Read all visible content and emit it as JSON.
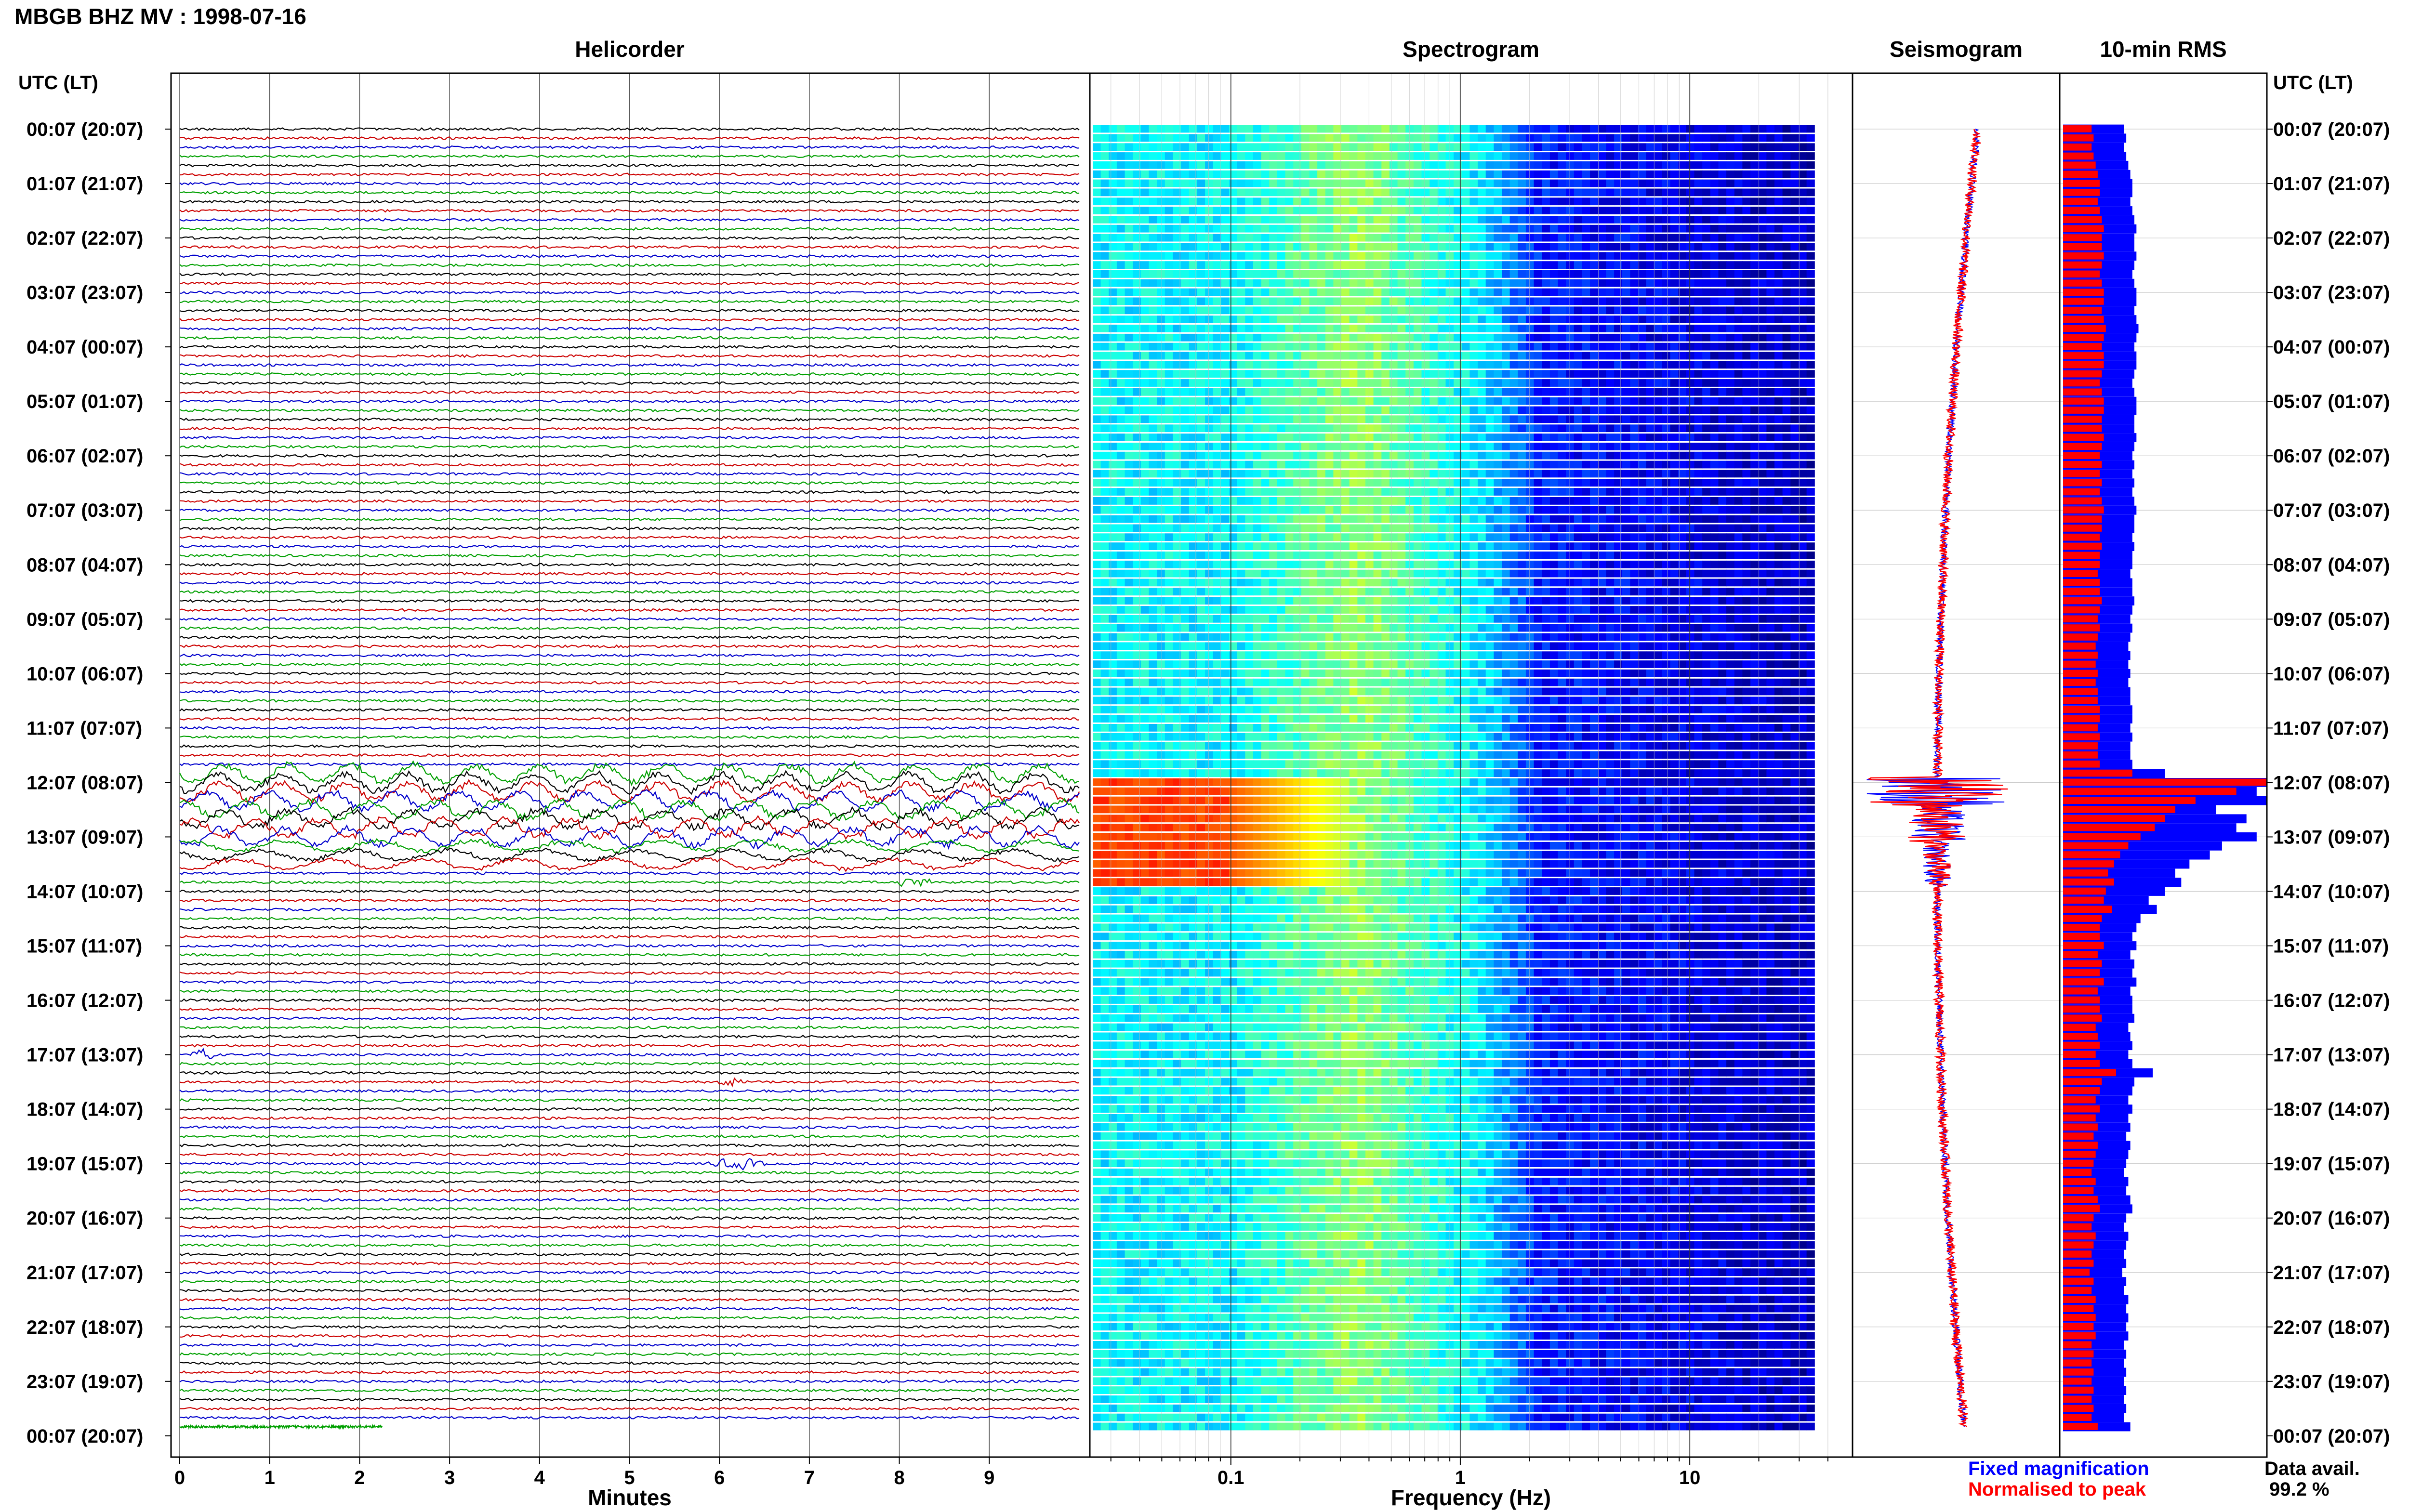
{
  "figure": {
    "title": "MBGB BHZ MV : 1998-07-16",
    "utc_label_left": "UTC (LT)",
    "utc_label_right": "UTC (LT)",
    "time_labels": [
      "00:07 (20:07)",
      "01:07 (21:07)",
      "02:07 (22:07)",
      "03:07 (23:07)",
      "04:07 (00:07)",
      "05:07 (01:07)",
      "06:07 (02:07)",
      "07:07 (03:07)",
      "08:07 (04:07)",
      "09:07 (05:07)",
      "10:07 (06:07)",
      "11:07 (07:07)",
      "12:07 (08:07)",
      "13:07 (09:07)",
      "14:07 (10:07)",
      "15:07 (11:07)",
      "16:07 (12:07)",
      "17:07 (13:07)",
      "18:07 (14:07)",
      "19:07 (15:07)",
      "20:07 (16:07)",
      "21:07 (17:07)",
      "22:07 (18:07)",
      "23:07 (19:07)",
      "00:07 (20:07)"
    ],
    "legend": {
      "fixed": "Fixed magnification",
      "normalised": "Normalised to peak",
      "data_avail_label": "Data avail.",
      "data_avail_value": "99.2 %"
    },
    "colors": {
      "fixed": "#0000ff",
      "normalised": "#ff0000"
    }
  },
  "chart_data": [
    {
      "type": "line",
      "title": "Helicorder",
      "xlabel": "Minutes",
      "xlim": [
        0,
        10
      ],
      "xticks": [
        0,
        1,
        2,
        3,
        4,
        5,
        6,
        7,
        8,
        9
      ],
      "rows": 144,
      "trace_colors": [
        "#000000",
        "#cc0000",
        "#0000cc",
        "#00a000"
      ],
      "events": [
        {
          "row": 71,
          "start_min": 0,
          "end_min": 10,
          "amp": "high"
        },
        {
          "row": 72,
          "start_min": 0,
          "end_min": 10,
          "amp": "high"
        },
        {
          "row": 73,
          "start_min": 0,
          "end_min": 10,
          "amp": "high"
        },
        {
          "row": 74,
          "start_min": 0,
          "end_min": 10,
          "amp": "high"
        },
        {
          "row": 75,
          "start_min": 0,
          "end_min": 10,
          "amp": "high"
        },
        {
          "row": 76,
          "start_min": 0,
          "end_min": 10,
          "amp": "high"
        },
        {
          "row": 77,
          "start_min": 0,
          "end_min": 10,
          "amp": "high"
        },
        {
          "row": 78,
          "start_min": 0,
          "end_min": 10,
          "amp": "high"
        },
        {
          "row": 79,
          "start_min": 0,
          "end_min": 10,
          "amp": "mid"
        },
        {
          "row": 80,
          "start_min": 0,
          "end_min": 10,
          "amp": "mid"
        },
        {
          "row": 81,
          "start_min": 0,
          "end_min": 10,
          "amp": "mid"
        },
        {
          "row": 83,
          "start_min": 7.9,
          "end_min": 8.4,
          "amp": "burst"
        },
        {
          "row": 102,
          "start_min": 0.05,
          "end_min": 0.45,
          "amp": "burst"
        },
        {
          "row": 105,
          "start_min": 5.9,
          "end_min": 6.3,
          "amp": "burst"
        },
        {
          "row": 114,
          "start_min": 5.8,
          "end_min": 6.6,
          "amp": "burst"
        }
      ],
      "last_row_end_min": 2.25
    },
    {
      "type": "heatmap",
      "title": "Spectrogram",
      "xlabel": "Frequency (Hz)",
      "xscale": "log",
      "xlim": [
        0.025,
        50
      ],
      "xticks": [
        0.1,
        1,
        10
      ],
      "rows": 144,
      "freq_max_data": 35,
      "colormap": [
        "#00007f",
        "#0000ff",
        "#007fff",
        "#00ffff",
        "#7fff7f",
        "#ffff00",
        "#ff7f00",
        "#ff0000"
      ],
      "high_energy_rows": [
        72,
        73,
        74,
        75,
        76,
        77,
        78,
        79,
        80,
        81,
        82,
        83
      ]
    },
    {
      "type": "line",
      "title": "Seismogram",
      "series": [
        {
          "name": "Fixed magnification",
          "color": "#0000ff"
        },
        {
          "name": "Normalised to peak",
          "color": "#ff0000"
        }
      ],
      "event_rows": [
        72,
        73,
        74,
        75,
        76,
        77,
        78,
        79,
        80,
        81,
        82,
        83
      ]
    },
    {
      "type": "bar",
      "title": "10-min RMS",
      "orientation": "horizontal",
      "rows": 144,
      "fixed": [
        0.3,
        0.31,
        0.3,
        0.31,
        0.32,
        0.33,
        0.34,
        0.34,
        0.33,
        0.34,
        0.35,
        0.36,
        0.35,
        0.35,
        0.36,
        0.35,
        0.34,
        0.35,
        0.36,
        0.36,
        0.35,
        0.36,
        0.37,
        0.36,
        0.35,
        0.36,
        0.36,
        0.35,
        0.34,
        0.35,
        0.36,
        0.36,
        0.35,
        0.35,
        0.36,
        0.35,
        0.34,
        0.35,
        0.34,
        0.35,
        0.34,
        0.35,
        0.36,
        0.35,
        0.35,
        0.34,
        0.35,
        0.34,
        0.34,
        0.33,
        0.34,
        0.34,
        0.35,
        0.34,
        0.33,
        0.34,
        0.33,
        0.32,
        0.33,
        0.32,
        0.33,
        0.32,
        0.33,
        0.33,
        0.34,
        0.34,
        0.33,
        0.34,
        0.33,
        0.33,
        0.34,
        0.5,
        1.0,
        0.95,
        1.0,
        0.75,
        0.9,
        0.85,
        0.95,
        0.78,
        0.72,
        0.62,
        0.55,
        0.58,
        0.5,
        0.42,
        0.46,
        0.38,
        0.36,
        0.34,
        0.36,
        0.33,
        0.35,
        0.34,
        0.36,
        0.33,
        0.34,
        0.34,
        0.35,
        0.32,
        0.33,
        0.34,
        0.32,
        0.34,
        0.44,
        0.35,
        0.34,
        0.32,
        0.34,
        0.32,
        0.33,
        0.31,
        0.33,
        0.32,
        0.31,
        0.3,
        0.32,
        0.31,
        0.33,
        0.34,
        0.31,
        0.3,
        0.32,
        0.31,
        0.3,
        0.31,
        0.29,
        0.31,
        0.3,
        0.32,
        0.31,
        0.32,
        0.31,
        0.32,
        0.3,
        0.31,
        0.3,
        0.31,
        0.3,
        0.31,
        0.3,
        0.31,
        0.3,
        0.33
      ],
      "normalised": [
        0.14,
        0.15,
        0.14,
        0.15,
        0.16,
        0.17,
        0.18,
        0.18,
        0.17,
        0.18,
        0.19,
        0.2,
        0.19,
        0.19,
        0.2,
        0.19,
        0.18,
        0.19,
        0.2,
        0.2,
        0.19,
        0.2,
        0.21,
        0.2,
        0.19,
        0.2,
        0.2,
        0.19,
        0.18,
        0.19,
        0.2,
        0.2,
        0.19,
        0.19,
        0.2,
        0.19,
        0.18,
        0.19,
        0.18,
        0.19,
        0.18,
        0.19,
        0.2,
        0.19,
        0.19,
        0.18,
        0.19,
        0.18,
        0.18,
        0.17,
        0.18,
        0.18,
        0.19,
        0.18,
        0.17,
        0.18,
        0.17,
        0.16,
        0.17,
        0.16,
        0.17,
        0.16,
        0.17,
        0.17,
        0.18,
        0.18,
        0.17,
        0.18,
        0.17,
        0.17,
        0.18,
        0.34,
        1.0,
        0.85,
        0.65,
        0.55,
        0.5,
        0.45,
        0.38,
        0.32,
        0.28,
        0.25,
        0.22,
        0.25,
        0.21,
        0.2,
        0.24,
        0.19,
        0.18,
        0.18,
        0.2,
        0.17,
        0.19,
        0.18,
        0.2,
        0.17,
        0.18,
        0.18,
        0.19,
        0.16,
        0.17,
        0.18,
        0.16,
        0.18,
        0.26,
        0.19,
        0.18,
        0.16,
        0.18,
        0.16,
        0.17,
        0.15,
        0.17,
        0.16,
        0.15,
        0.14,
        0.16,
        0.15,
        0.17,
        0.18,
        0.15,
        0.14,
        0.16,
        0.15,
        0.14,
        0.15,
        0.13,
        0.15,
        0.14,
        0.16,
        0.15,
        0.16,
        0.15,
        0.16,
        0.14,
        0.15,
        0.14,
        0.15,
        0.14,
        0.15,
        0.14,
        0.15,
        0.14,
        0.17
      ]
    }
  ]
}
